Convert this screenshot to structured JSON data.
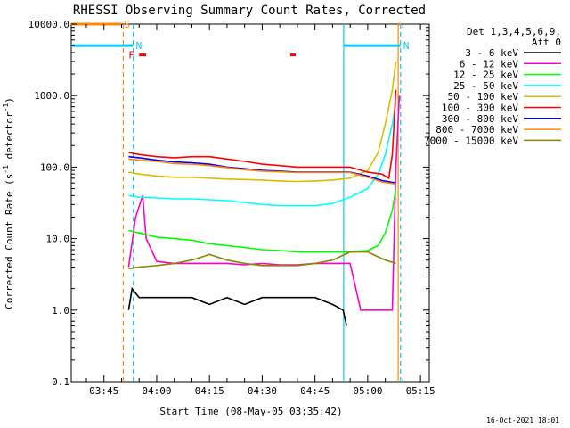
{
  "chart_data": {
    "type": "line",
    "title": "RHESSI Observing Summary Count Rates, Corrected",
    "xlabel": "Start Time (08-May-05 03:35:42)",
    "ylabel": "Corrected Count Rate (s⁻¹ detector⁻¹)",
    "ylabel_parts": {
      "main": "Corrected Count Rate (s",
      "exp1": "-1",
      "mid": " detector",
      "exp2": "-1",
      "end": ")"
    },
    "y_scale": "log",
    "ylim": [
      0.1,
      10000
    ],
    "y_ticks": [
      {
        "value": 0.1,
        "label": "0.1"
      },
      {
        "value": 1,
        "label": "1.0"
      },
      {
        "value": 10,
        "label": "10.0"
      },
      {
        "value": 100,
        "label": "100.0"
      },
      {
        "value": 1000,
        "label": "1000.0"
      },
      {
        "value": 10000,
        "label": "10000.0"
      }
    ],
    "xlim": [
      "03:35:42",
      "05:17:30"
    ],
    "x_ticks": [
      {
        "value": "03:45",
        "label": "03:45"
      },
      {
        "value": "04:00",
        "label": "04:00"
      },
      {
        "value": "04:15",
        "label": "04:15"
      },
      {
        "value": "04:30",
        "label": "04:30"
      },
      {
        "value": "04:45",
        "label": "04:45"
      },
      {
        "value": "05:00",
        "label": "05:00"
      },
      {
        "value": "05:15",
        "label": "05:15"
      }
    ],
    "legend": {
      "position": "right",
      "header": [
        "Det 1,3,4,5,6,9,",
        "Att 0"
      ]
    },
    "series": [
      {
        "name": "3 - 6 keV",
        "color": "#000000",
        "x": [
          "03:52",
          "03:53",
          "03:55",
          "04:00",
          "04:05",
          "04:10",
          "04:15",
          "04:20",
          "04:25",
          "04:30",
          "04:35",
          "04:40",
          "04:45",
          "04:50",
          "04:53",
          "04:54"
        ],
        "y": [
          1.0,
          2.0,
          1.5,
          1.5,
          1.5,
          1.5,
          1.2,
          1.5,
          1.2,
          1.5,
          1.5,
          1.5,
          1.5,
          1.2,
          1.0,
          0.6
        ]
      },
      {
        "name": "6 - 12 keV",
        "color": "#ff00cc",
        "x": [
          "03:52",
          "03:54",
          "03:56",
          "03:57",
          "04:00",
          "04:05",
          "04:10",
          "04:15",
          "04:20",
          "04:25",
          "04:30",
          "04:35",
          "04:40",
          "04:45",
          "04:50",
          "04:55",
          "04:58",
          "05:07",
          "05:08",
          "05:09"
        ],
        "y": [
          4.0,
          20.0,
          40.0,
          10.0,
          4.8,
          4.5,
          4.5,
          4.5,
          4.5,
          4.3,
          4.5,
          4.3,
          4.3,
          4.5,
          4.5,
          4.5,
          1.0,
          1.0,
          100.0,
          1000.0
        ]
      },
      {
        "name": "12 - 25 keV",
        "color": "#00ff00",
        "x": [
          "03:52",
          "03:55",
          "04:00",
          "04:05",
          "04:10",
          "04:15",
          "04:20",
          "04:25",
          "04:30",
          "04:35",
          "04:40",
          "04:45",
          "04:50",
          "04:55",
          "05:00",
          "05:03",
          "05:05",
          "05:07",
          "05:08"
        ],
        "y": [
          13.0,
          12.0,
          10.5,
          10.0,
          9.5,
          8.5,
          8.0,
          7.5,
          7.0,
          6.8,
          6.5,
          6.5,
          6.5,
          6.5,
          6.8,
          8.0,
          12.0,
          25.0,
          50.0
        ]
      },
      {
        "name": "25 - 50 keV",
        "color": "#00ffff",
        "x": [
          "03:52",
          "03:55",
          "04:00",
          "04:05",
          "04:10",
          "04:15",
          "04:20",
          "04:25",
          "04:30",
          "04:35",
          "04:40",
          "04:45",
          "04:50",
          "04:55",
          "05:00",
          "05:03",
          "05:05",
          "05:07",
          "05:08"
        ],
        "y": [
          40.0,
          38.0,
          37.0,
          36.0,
          36.0,
          35.0,
          34.0,
          32.0,
          30.0,
          29.0,
          29.0,
          29.0,
          31.0,
          38.0,
          50.0,
          80.0,
          150.0,
          400.0,
          800.0
        ]
      },
      {
        "name": "50 - 100 keV",
        "color": "#ddbb00",
        "x": [
          "03:52",
          "03:55",
          "04:00",
          "04:05",
          "04:10",
          "04:15",
          "04:20",
          "04:25",
          "04:30",
          "04:35",
          "04:40",
          "04:45",
          "04:50",
          "04:55",
          "05:00",
          "05:03",
          "05:05",
          "05:07",
          "05:08"
        ],
        "y": [
          85.0,
          80.0,
          75.0,
          72.0,
          72.0,
          70.0,
          68.0,
          67.0,
          66.0,
          64.0,
          63.0,
          64.0,
          66.0,
          70.0,
          90.0,
          160.0,
          400.0,
          1200.0,
          3000.0
        ]
      },
      {
        "name": "100 - 300 keV",
        "color": "#ff0000",
        "x": [
          "03:52",
          "03:55",
          "04:00",
          "04:05",
          "04:10",
          "04:15",
          "04:20",
          "04:25",
          "04:30",
          "04:35",
          "04:40",
          "04:45",
          "04:50",
          "04:55",
          "05:00",
          "05:04",
          "05:06",
          "05:07",
          "05:08"
        ],
        "y": [
          160.0,
          150.0,
          140.0,
          135.0,
          140.0,
          140.0,
          130.0,
          120.0,
          110.0,
          105.0,
          100.0,
          100.0,
          100.0,
          100.0,
          85.0,
          80.0,
          70.0,
          150.0,
          1200.0
        ]
      },
      {
        "name": "300 - 800 keV",
        "color": "#0000ff",
        "x": [
          "03:52",
          "03:55",
          "04:00",
          "04:05",
          "04:10",
          "04:15",
          "04:20",
          "04:25",
          "04:30",
          "04:35",
          "04:40",
          "04:45",
          "04:50",
          "04:55",
          "05:00",
          "05:04",
          "05:08"
        ],
        "y": [
          140.0,
          135.0,
          125.0,
          118.0,
          115.0,
          110.0,
          100.0,
          95.0,
          90.0,
          88.0,
          85.0,
          85.0,
          85.0,
          85.0,
          75.0,
          65.0,
          60.0
        ]
      },
      {
        "name": "800 - 7000 keV",
        "color": "#ff8800",
        "x": [
          "03:52",
          "03:55",
          "04:00",
          "04:05",
          "04:10",
          "04:15",
          "04:20",
          "04:25",
          "04:30",
          "04:35",
          "04:40",
          "04:45",
          "04:50",
          "04:55",
          "05:00",
          "05:04",
          "05:08"
        ],
        "y": [
          130.0,
          125.0,
          120.0,
          112.0,
          110.0,
          105.0,
          98.0,
          92.0,
          88.0,
          86.0,
          84.0,
          84.0,
          84.0,
          84.0,
          72.0,
          62.0,
          58.0
        ]
      },
      {
        "name": "7000 - 15000 keV",
        "color": "#888800",
        "x": [
          "03:52",
          "03:55",
          "04:00",
          "04:05",
          "04:10",
          "04:15",
          "04:20",
          "04:25",
          "04:30",
          "04:35",
          "04:40",
          "04:45",
          "04:50",
          "04:55",
          "05:00",
          "05:05",
          "05:08"
        ],
        "y": [
          3.8,
          4.0,
          4.2,
          4.5,
          5.0,
          6.0,
          5.0,
          4.5,
          4.2,
          4.2,
          4.2,
          4.5,
          5.0,
          6.5,
          6.5,
          5.0,
          4.5
        ]
      }
    ],
    "annotations": {
      "vlines": [
        {
          "time": "03:50:30",
          "color": "#ff8800",
          "style": "dashed"
        },
        {
          "time": "03:53:20",
          "color": "#00ccff",
          "style": "dashed"
        },
        {
          "time": "04:53:10",
          "color": "#00ccff",
          "style": "solid"
        },
        {
          "time": "05:08:40",
          "color": "#ff8800",
          "style": "solid"
        },
        {
          "time": "05:09:20",
          "color": "#00ccff",
          "style": "dashed"
        }
      ],
      "bars": [
        {
          "label": "S",
          "start": "03:35:42",
          "end": "03:50:00",
          "color": "#ff8800",
          "level": 10000
        },
        {
          "label": "N",
          "start": "03:35:42",
          "end": "03:53:20",
          "color": "#00ccff",
          "level": 5000
        },
        {
          "label": "N",
          "start": "04:53:10",
          "end": "05:09:20",
          "color": "#00ccff",
          "level": 5000
        },
        {
          "label": "",
          "start": "05:08:40",
          "end": "05:09:20",
          "color": "#ff8800",
          "level": 10000
        },
        {
          "label": "F",
          "start": "03:55:00",
          "end": "03:57:00",
          "color": "#ff0000",
          "level": 3700
        },
        {
          "label": "",
          "start": "04:38:00",
          "end": "04:39:30",
          "color": "#ff0000",
          "level": 3700
        }
      ]
    }
  },
  "footer": {
    "timestamp": "16-Oct-2021 18:01"
  }
}
